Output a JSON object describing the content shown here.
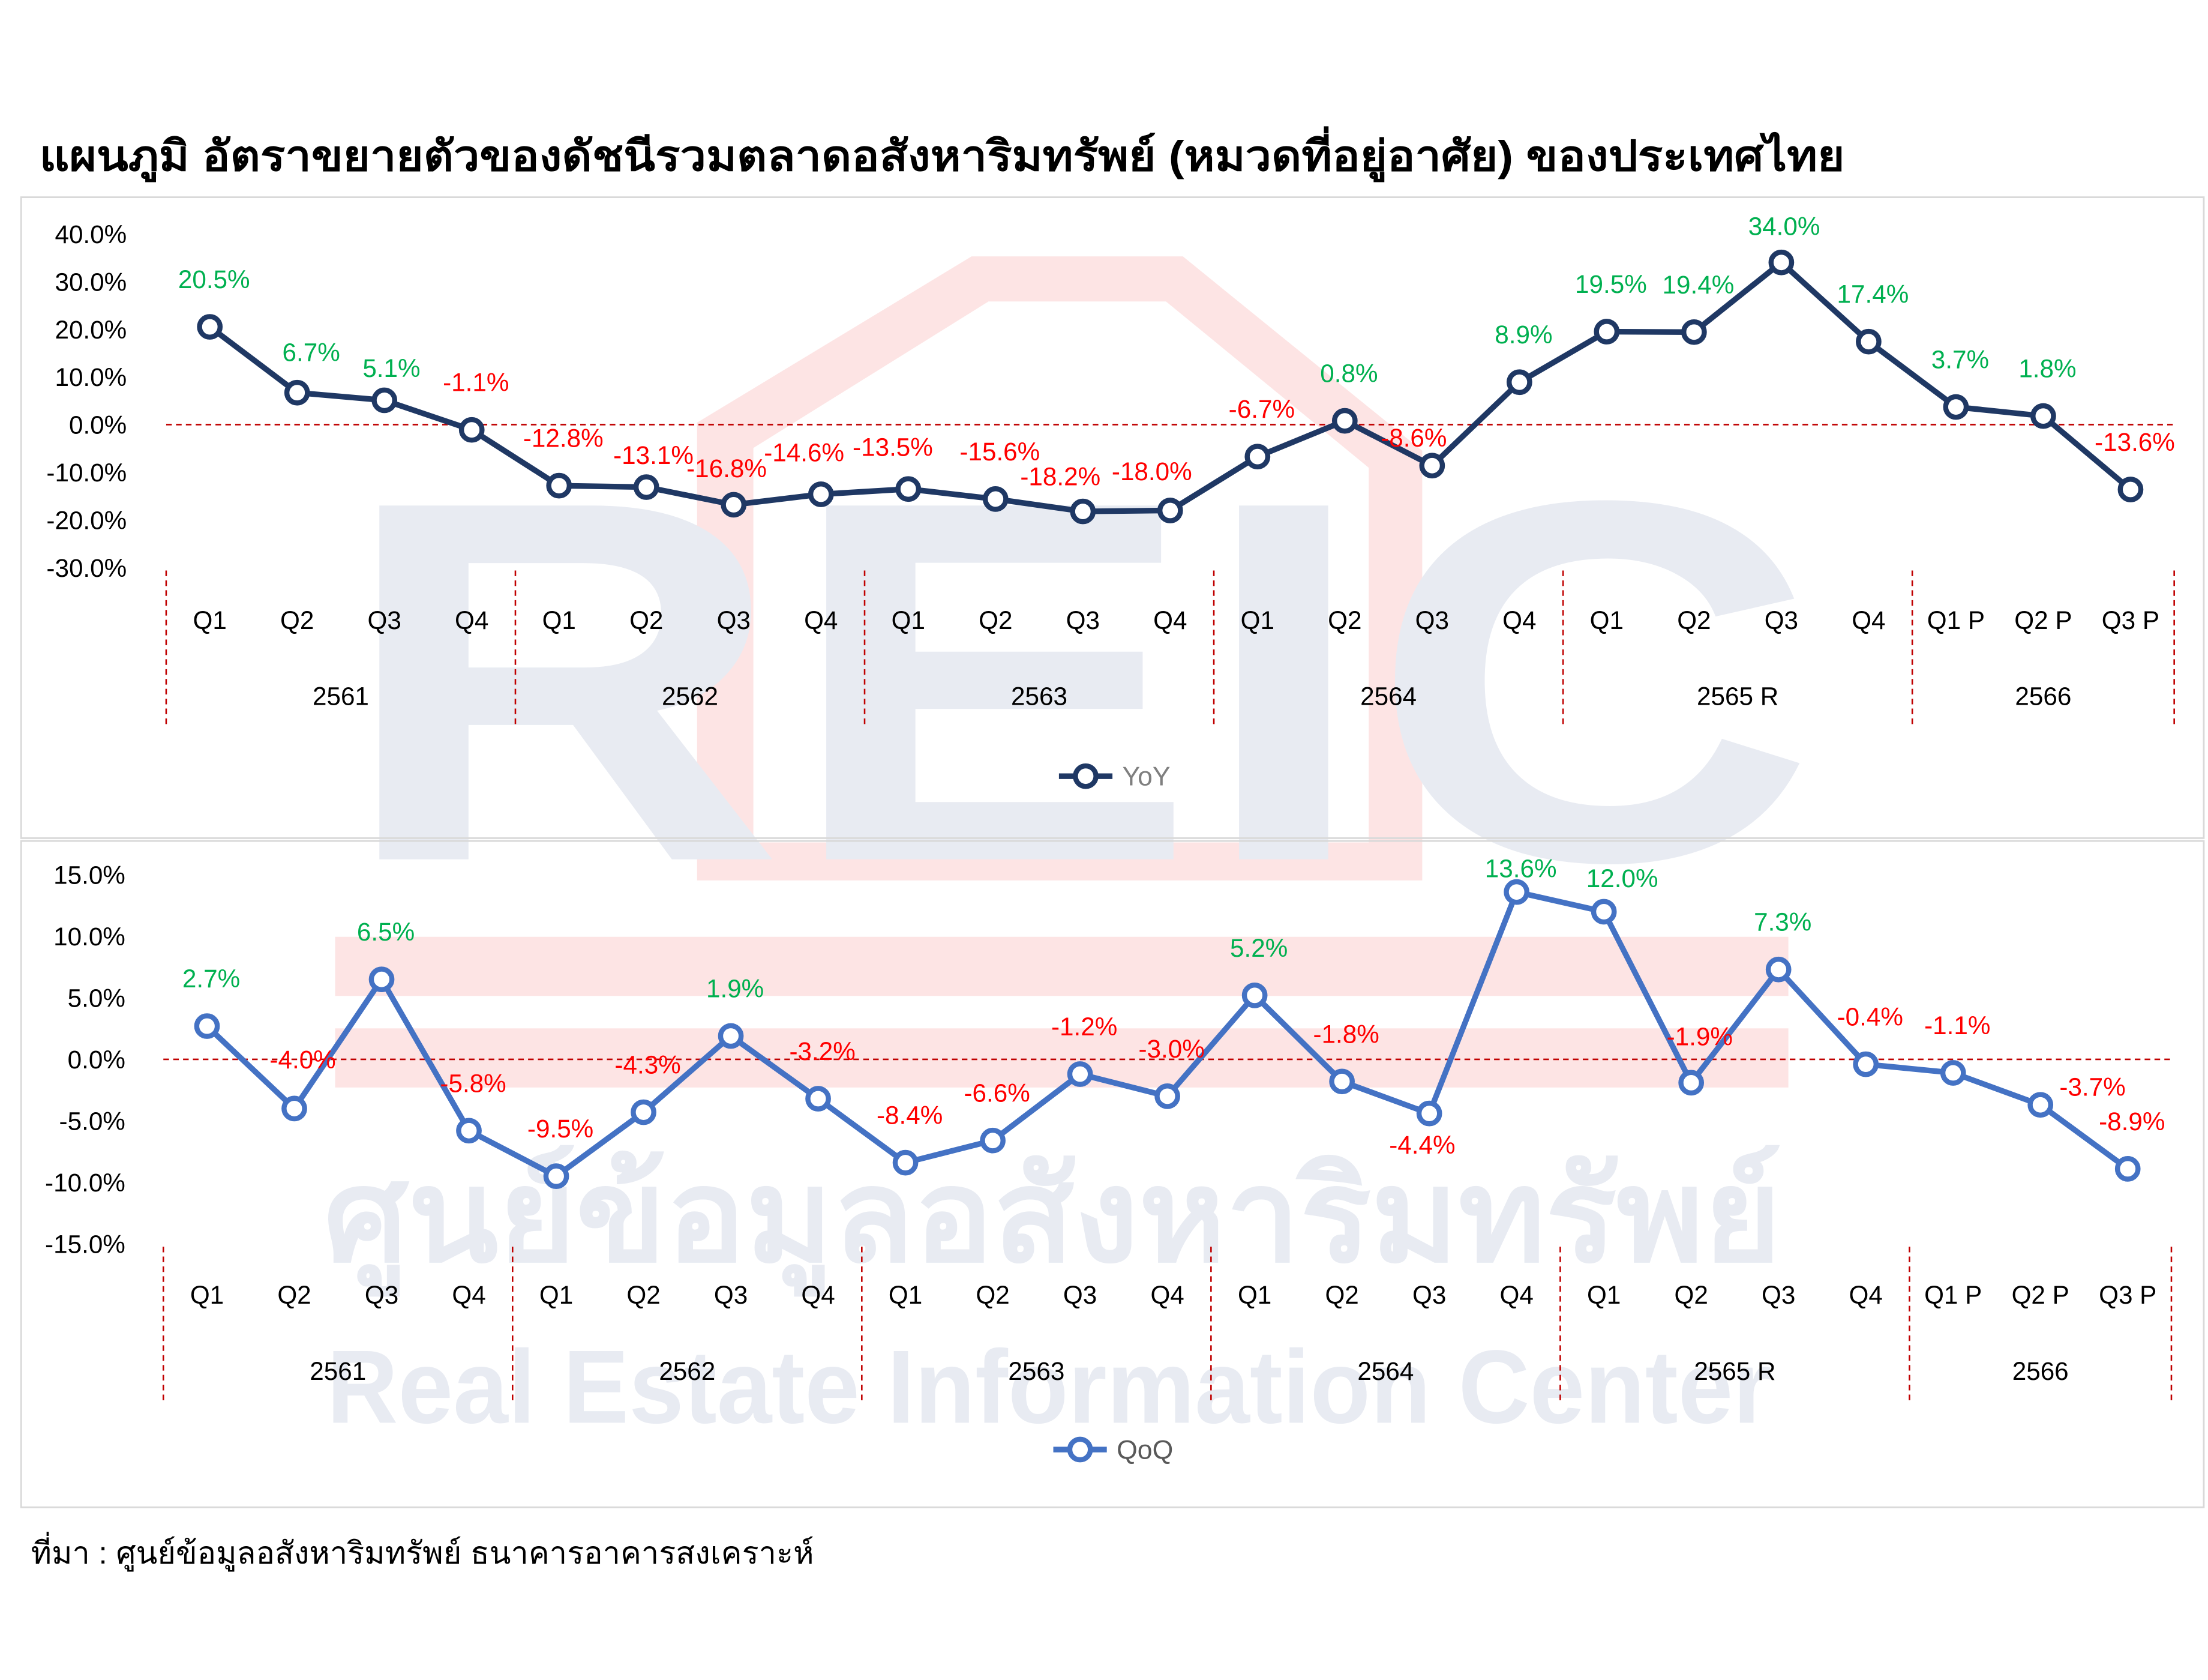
{
  "title": "แผนภูมิ อัตราขยายตัวของดัชนีรวมตลาดอสังหาริมทรัพย์ (หมวดที่อยู่อาศัย) ของประเทศไทย",
  "source": "ที่มา : ศูนย์ข้อมูลอสังหาริมทรัพย์ ธนาคารอาคารสงเคราะห์",
  "watermark": {
    "logo": "REIC",
    "name_th": "ศูนย์ข้อมูลอสังหาริมทรัพย์",
    "name_en": "Real Estate Information Center"
  },
  "colors": {
    "yoy_line": "#1F3864",
    "qoq_line": "#4472C4",
    "positive_label": "#00B050",
    "negative_label": "#FF0000",
    "reference_line": "#C00000",
    "group_separator": "#C00000"
  },
  "chart_data": [
    {
      "type": "line",
      "x_groups": [
        {
          "year": "2561",
          "quarters": [
            "Q1",
            "Q2",
            "Q3",
            "Q4"
          ]
        },
        {
          "year": "2562",
          "quarters": [
            "Q1",
            "Q2",
            "Q3",
            "Q4"
          ]
        },
        {
          "year": "2563",
          "quarters": [
            "Q1",
            "Q2",
            "Q3",
            "Q4"
          ]
        },
        {
          "year": "2564",
          "quarters": [
            "Q1",
            "Q2",
            "Q3",
            "Q4"
          ]
        },
        {
          "year": "2565 R",
          "quarters": [
            "Q1",
            "Q2",
            "Q3",
            "Q4"
          ]
        },
        {
          "year": "2566",
          "quarters": [
            "Q1 P",
            "Q2 P",
            "Q3 P"
          ]
        }
      ],
      "series": [
        {
          "name": "YoY",
          "values": [
            20.5,
            6.7,
            5.1,
            -1.1,
            -12.8,
            -13.1,
            -16.8,
            -14.6,
            -13.5,
            -15.6,
            -18.2,
            -18.0,
            -6.7,
            0.8,
            -8.6,
            8.9,
            19.5,
            19.4,
            34.0,
            17.4,
            3.7,
            1.8,
            -13.6
          ],
          "labels": [
            "20.5%",
            "6.7%",
            "5.1%",
            "-1.1%",
            "-12.8%",
            "-13.1%",
            "-16.8%",
            "-14.6%",
            "-13.5%",
            "-15.6%",
            "-18.2%",
            "-18.0%",
            "-6.7%",
            "0.8%",
            "-8.6%",
            "8.9%",
            "19.5%",
            "19.4%",
            "34.0%",
            "17.4%",
            "3.7%",
            "1.8%",
            "-13.6%"
          ]
        }
      ],
      "y_tick_labels": [
        "40.0%",
        "30.0%",
        "20.0%",
        "10.0%",
        "0.0%",
        "-10.0%",
        "-20.0%",
        "-30.0%"
      ],
      "ylim": [
        -30,
        40
      ],
      "reference_line": 0,
      "grid": false,
      "legend": "bottom"
    },
    {
      "type": "line",
      "x_groups": [
        {
          "year": "2561",
          "quarters": [
            "Q1",
            "Q2",
            "Q3",
            "Q4"
          ]
        },
        {
          "year": "2562",
          "quarters": [
            "Q1",
            "Q2",
            "Q3",
            "Q4"
          ]
        },
        {
          "year": "2563",
          "quarters": [
            "Q1",
            "Q2",
            "Q3",
            "Q4"
          ]
        },
        {
          "year": "2564",
          "quarters": [
            "Q1",
            "Q2",
            "Q3",
            "Q4"
          ]
        },
        {
          "year": "2565 R",
          "quarters": [
            "Q1",
            "Q2",
            "Q3",
            "Q4"
          ]
        },
        {
          "year": "2566",
          "quarters": [
            "Q1 P",
            "Q2 P",
            "Q3 P"
          ]
        }
      ],
      "series": [
        {
          "name": "QoQ",
          "values": [
            2.7,
            -4.0,
            6.5,
            -5.8,
            -9.5,
            -4.3,
            1.9,
            -3.2,
            -8.4,
            -6.6,
            -1.2,
            -3.0,
            5.2,
            -1.8,
            -4.4,
            13.6,
            12.0,
            -1.9,
            7.3,
            -0.4,
            -1.1,
            -3.7,
            -8.9
          ],
          "labels": [
            "2.7%",
            "-4.0%",
            "6.5%",
            "-5.8%",
            "-9.5%",
            "-4.3%",
            "1.9%",
            "-3.2%",
            "-8.4%",
            "-6.6%",
            "-1.2%",
            "-3.0%",
            "5.2%",
            "-1.8%",
            "-4.4%",
            "13.6%",
            "12.0%",
            "-1.9%",
            "7.3%",
            "-0.4%",
            "-1.1%",
            "-3.7%",
            "-8.9%"
          ]
        }
      ],
      "y_tick_labels": [
        "15.0%",
        "10.0%",
        "5.0%",
        "0.0%",
        "-5.0%",
        "-10.0%",
        "-15.0%"
      ],
      "ylim": [
        -15,
        15
      ],
      "reference_line": 0,
      "grid": false,
      "legend": "bottom"
    }
  ]
}
